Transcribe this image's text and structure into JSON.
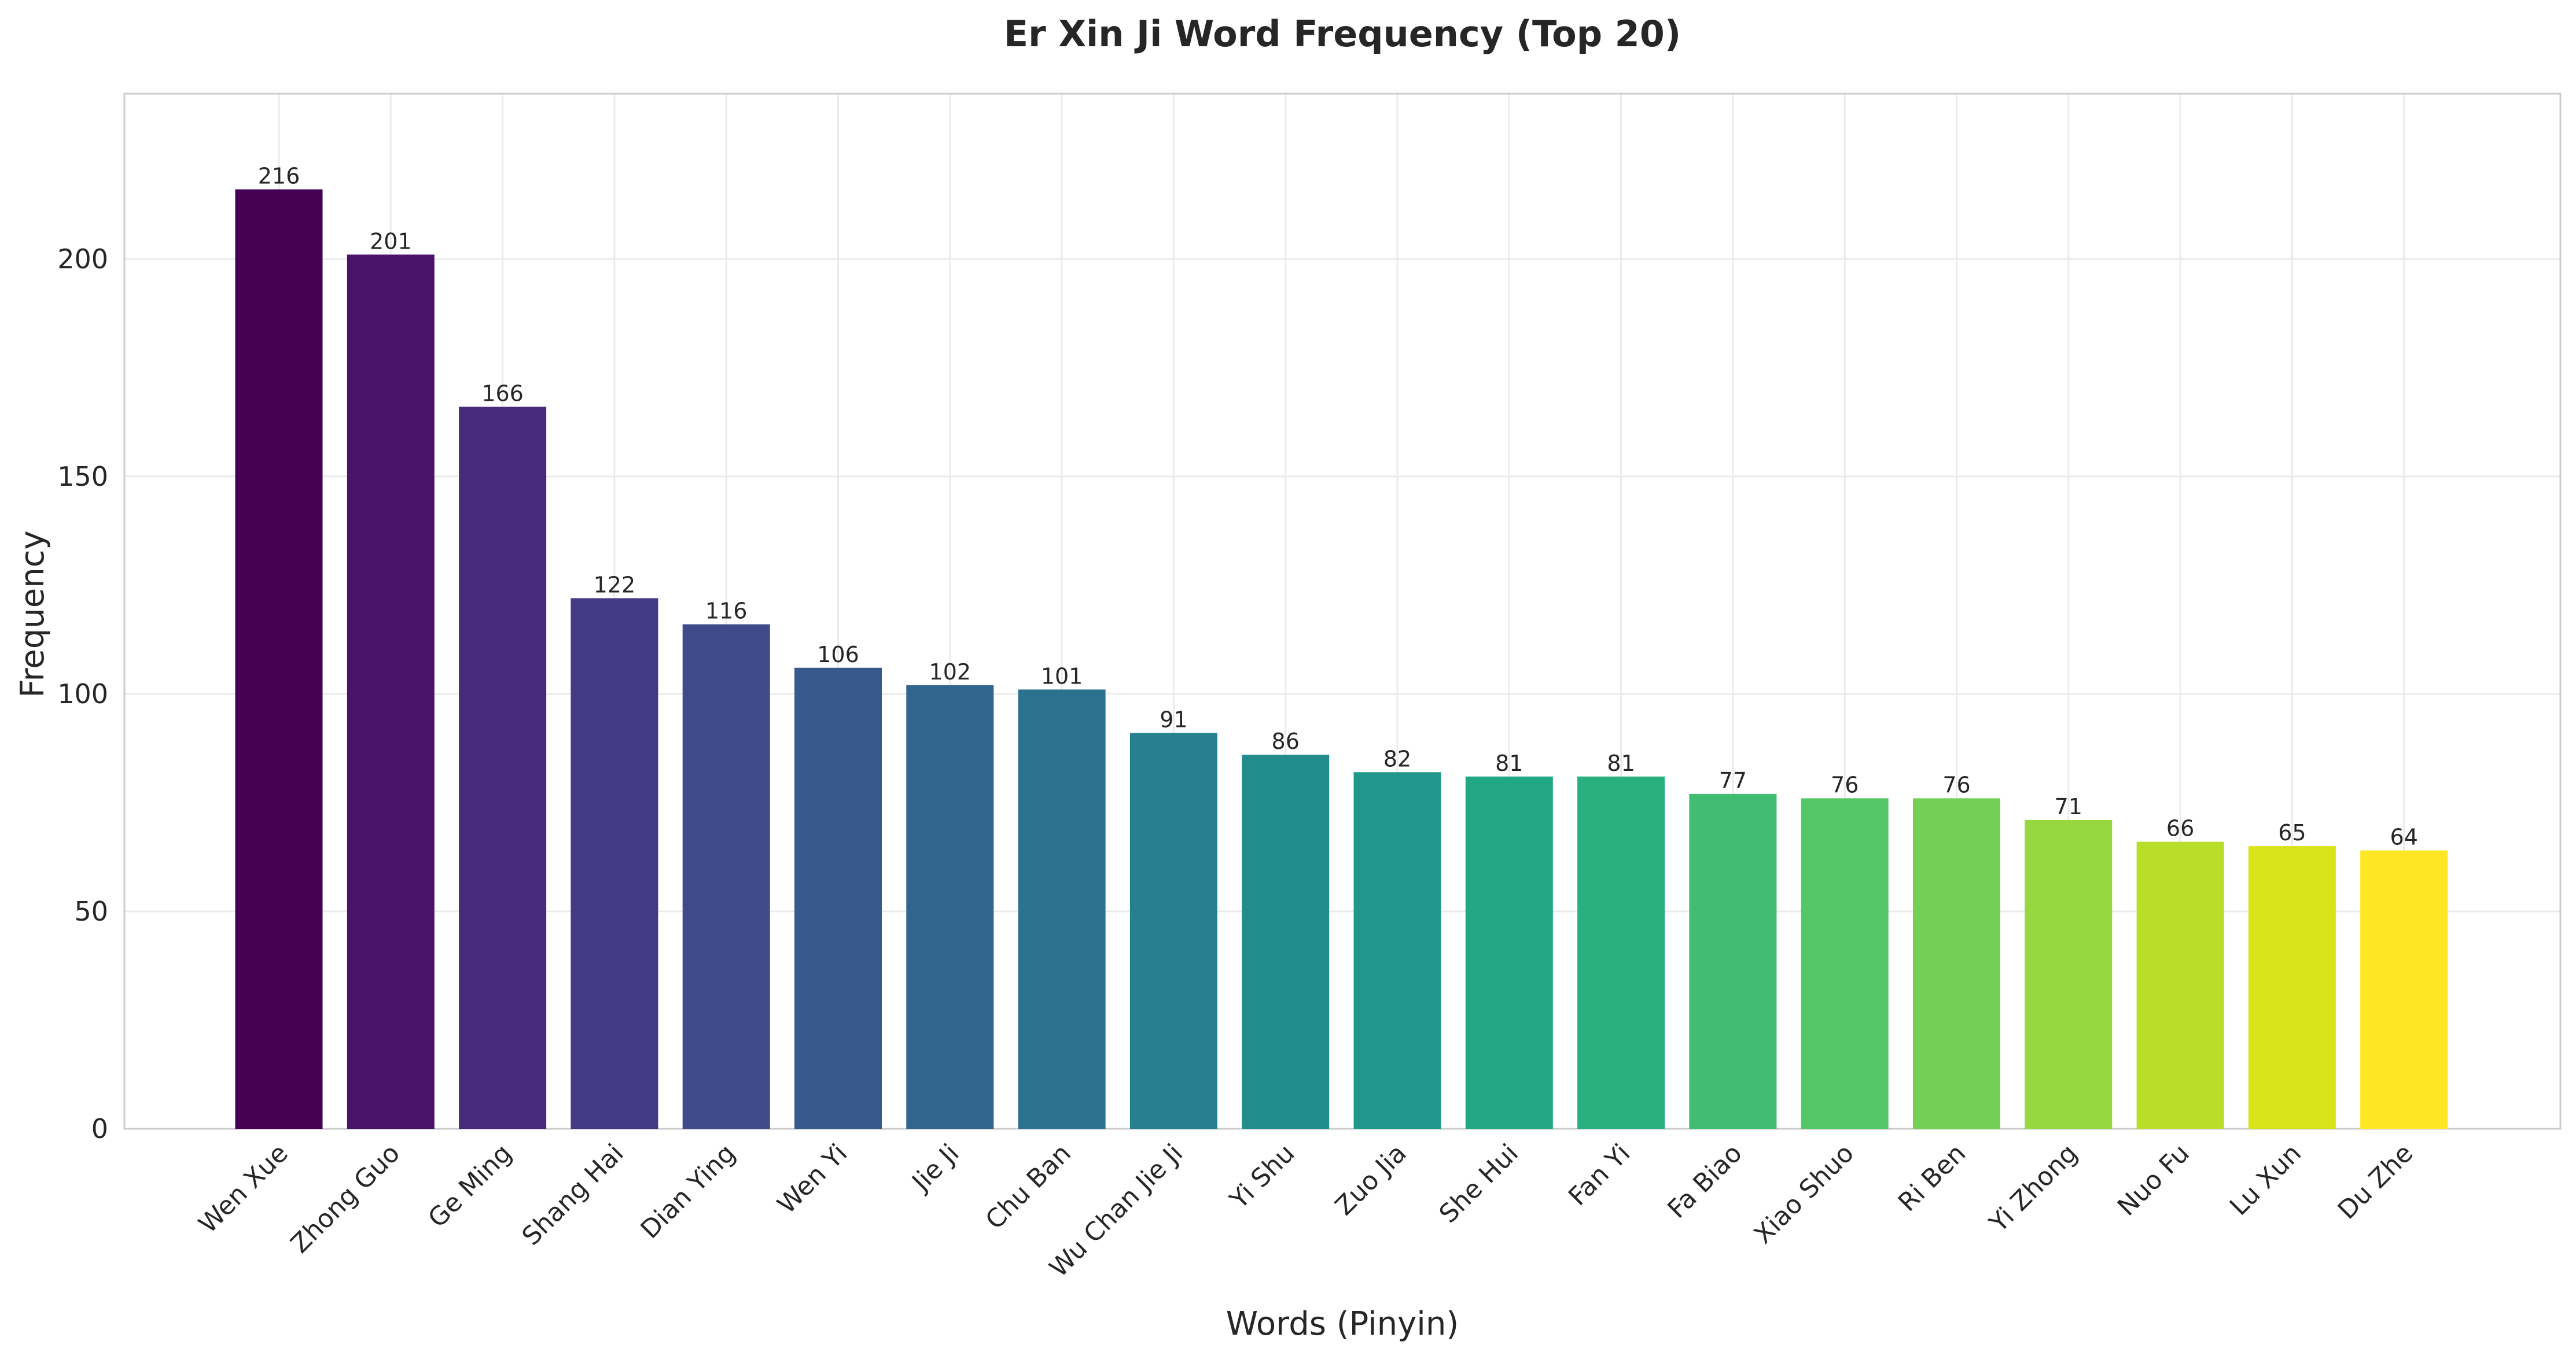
{
  "chart_data": {
    "type": "bar",
    "title": "Er Xin Ji Word Frequency (Top 20)",
    "xlabel": "Words (Pinyin)",
    "ylabel": "Frequency",
    "ylim": [
      0,
      238
    ],
    "yticks": [
      0,
      50,
      100,
      150,
      200
    ],
    "grid": true,
    "legend": "none",
    "categories": [
      "Wen Xue",
      "Zhong Guo",
      "Ge Ming",
      "Shang Hai",
      "Dian Ying",
      "Wen Yi",
      "Jie Ji",
      "Chu Ban",
      "Wu Chan Jie Ji",
      "Yi Shu",
      "Zuo Jia",
      "She Hui",
      "Fan Yi",
      "Fa Biao",
      "Xiao Shuo",
      "Ri Ben",
      "Yi Zhong",
      "Nuo Fu",
      "Lu Xun",
      "Du Zhe"
    ],
    "values": [
      216,
      201,
      166,
      122,
      116,
      106,
      102,
      101,
      91,
      86,
      82,
      81,
      81,
      77,
      76,
      76,
      71,
      66,
      65,
      64
    ],
    "colors": [
      "#440154",
      "#48146a",
      "#472a7a",
      "#433a84",
      "#3e4a89",
      "#38598c",
      "#32658e",
      "#2c728e",
      "#27808e",
      "#228c8d",
      "#1f988b",
      "#22a785",
      "#2ab07f",
      "#40bd72",
      "#55c667",
      "#73d055",
      "#95d840",
      "#b8de29",
      "#dae319",
      "#fde725"
    ]
  }
}
